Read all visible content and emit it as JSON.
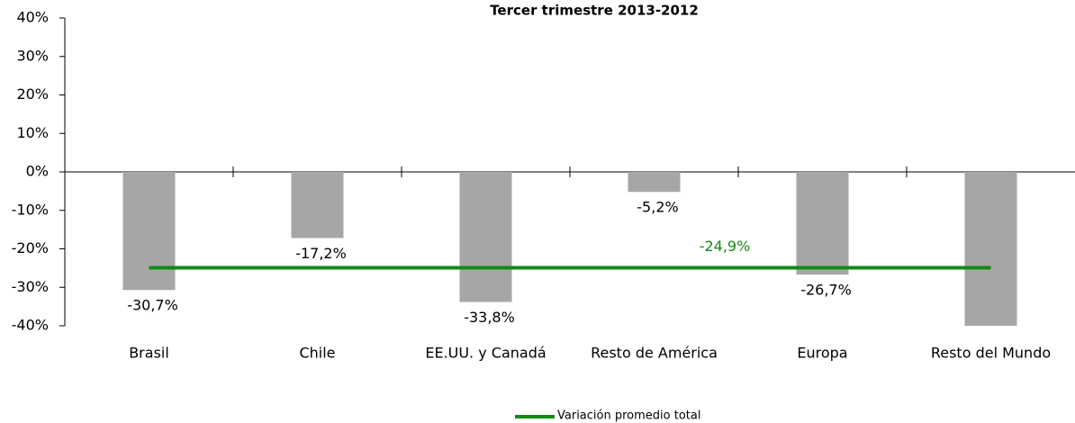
{
  "chart_data": {
    "type": "bar",
    "title": "Tercer trimestre 2013-2012",
    "categories": [
      "Brasil",
      "Chile",
      "EE.UU. y Canadá",
      "Resto de América",
      "Europa",
      "Resto del Mundo"
    ],
    "values": [
      -30.7,
      -17.2,
      -33.8,
      -5.2,
      -26.7,
      -40
    ],
    "value_labels": [
      "-30,7%",
      "-17,2%",
      "-33,8%",
      "-5,2%",
      "-26,7%",
      null
    ],
    "color": "#a6a6a6",
    "average": {
      "name": "Variación promedio total",
      "value": -24.9,
      "label": "-24,9%",
      "color": "#138a13"
    },
    "ylim": [
      -40,
      40
    ],
    "yticks": [
      {
        "value": 40,
        "label": "40%"
      },
      {
        "value": 30,
        "label": "30%"
      },
      {
        "value": 20,
        "label": "20%"
      },
      {
        "value": 10,
        "label": "10%"
      },
      {
        "value": 0,
        "label": "0%"
      },
      {
        "value": -10,
        "label": "-10%"
      },
      {
        "value": -20,
        "label": "-20%"
      },
      {
        "value": -30,
        "label": "-30%"
      },
      {
        "value": -40,
        "label": "-40%"
      }
    ],
    "grid": false
  }
}
